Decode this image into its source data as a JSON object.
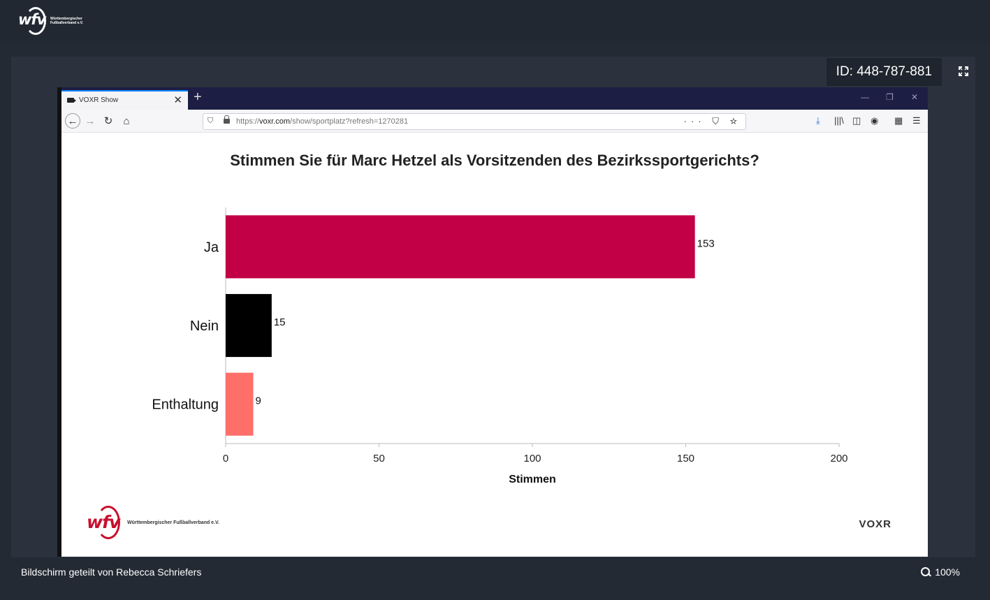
{
  "app": {
    "logo_text": "wfv",
    "logo_sub": "Württembergischer Fußballverband e.V.",
    "session_id": "ID: 448-787-881"
  },
  "browser": {
    "tab_title": "VOXR Show",
    "url_scheme": "https://",
    "url_domain": "voxr.com",
    "url_path": "/show/sportplatz?refresh=1270281"
  },
  "footer": {
    "logo_text": "wfv",
    "logo_sub": "Württembergischer Fußballverband e.V.",
    "brand": "VOXR"
  },
  "bottom": {
    "share_info": "Bildschirm geteilt von Rebecca Schriefers",
    "zoom": "100%"
  },
  "colors": {
    "ja": "#c20045",
    "nein": "#000000",
    "enthaltung": "#ff6f6a"
  },
  "chart_data": {
    "type": "bar",
    "orientation": "horizontal",
    "title": "Stimmen Sie für Marc Hetzel als Vorsitzenden des Bezirkssportgerichts?",
    "categories": [
      "Ja",
      "Nein",
      "Enthaltung"
    ],
    "values": [
      153,
      15,
      9
    ],
    "colors": [
      "#c20045",
      "#000000",
      "#ff6f6a"
    ],
    "xlabel": "Stimmen",
    "ylabel": "",
    "xlim": [
      0,
      200
    ],
    "xticks": [
      0,
      50,
      100,
      150,
      200
    ],
    "grid": false
  }
}
